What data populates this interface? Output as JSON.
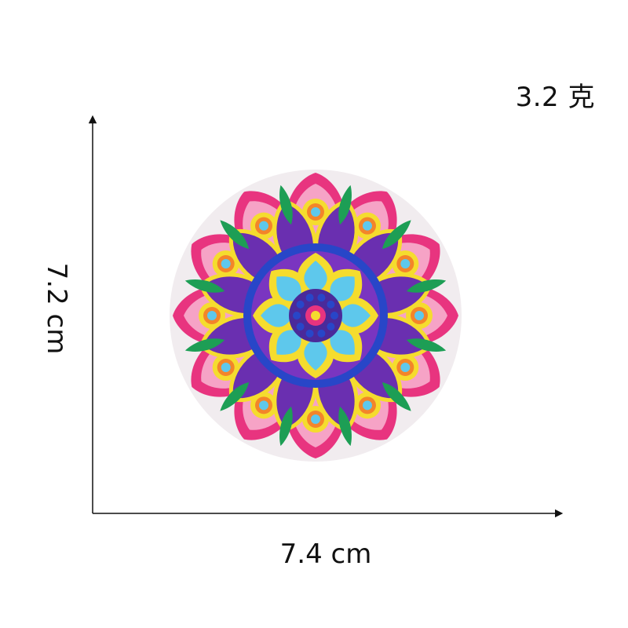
{
  "product": {
    "weight_label": "3.2 克",
    "width_label": "7.4 cm",
    "height_label": "7.2 cm",
    "image_subject": "mandala-embroidered-patch"
  },
  "colors": {
    "background": "#ffffff",
    "axis": "#111111",
    "magenta": "#e8347f",
    "pink": "#f6a3c6",
    "yellow": "#f5dc2e",
    "sky_blue": "#5ec8ec",
    "royal_blue": "#2846c8",
    "purple": "#6a2fb0",
    "green": "#1d9e55",
    "orange": "#f3852a"
  }
}
